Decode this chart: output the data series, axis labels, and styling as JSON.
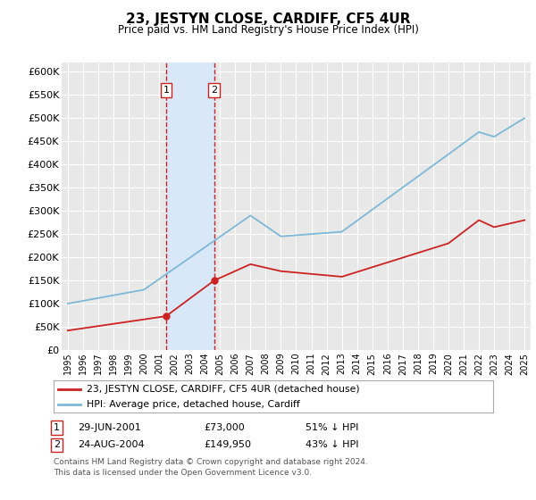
{
  "title": "23, JESTYN CLOSE, CARDIFF, CF5 4UR",
  "subtitle": "Price paid vs. HM Land Registry's House Price Index (HPI)",
  "ylim": [
    0,
    620000
  ],
  "yticks": [
    0,
    50000,
    100000,
    150000,
    200000,
    250000,
    300000,
    350000,
    400000,
    450000,
    500000,
    550000,
    600000
  ],
  "ytick_labels": [
    "£0",
    "£50K",
    "£100K",
    "£150K",
    "£200K",
    "£250K",
    "£300K",
    "£350K",
    "£400K",
    "£450K",
    "£500K",
    "£550K",
    "£600K"
  ],
  "hpi_color": "#7db8d8",
  "price_color": "#cc2222",
  "t1_year_f": 2001.46,
  "t2_year_f": 2004.62,
  "t1_price": 73000,
  "t2_price": 149950,
  "legend_line1": "23, JESTYN CLOSE, CARDIFF, CF5 4UR (detached house)",
  "legend_line2": "HPI: Average price, detached house, Cardiff",
  "row1_date": "29-JUN-2001",
  "row1_amount": "£73,000",
  "row1_pct": "51% ↓ HPI",
  "row2_date": "24-AUG-2004",
  "row2_amount": "£149,950",
  "row2_pct": "43% ↓ HPI",
  "footer1": "Contains HM Land Registry data © Crown copyright and database right 2024.",
  "footer2": "This data is licensed under the Open Government Licence v3.0.",
  "background_color": "#ffffff",
  "plot_bg_color": "#e8e8e8",
  "grid_color": "#ffffff",
  "shade_color": "#d8e8f8"
}
